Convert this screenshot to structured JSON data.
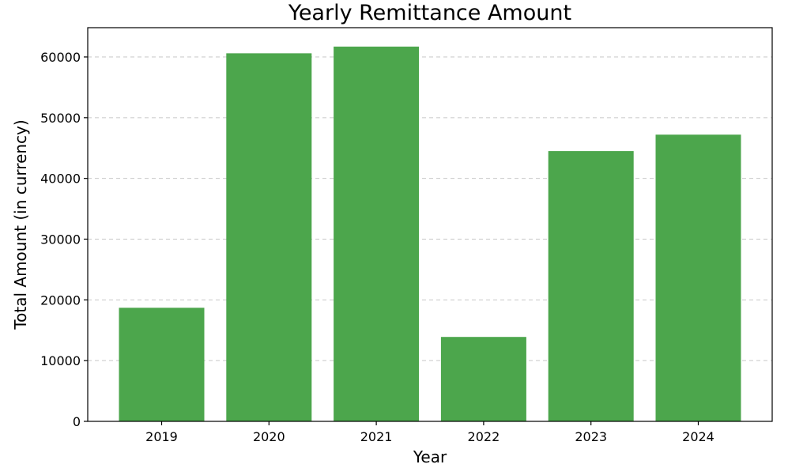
{
  "chart_data": {
    "type": "bar",
    "title": "Yearly Remittance Amount",
    "xlabel": "Year",
    "ylabel": "Total Amount (in currency)",
    "categories": [
      "2019",
      "2020",
      "2021",
      "2022",
      "2023",
      "2024"
    ],
    "values": [
      18700,
      60600,
      61700,
      13900,
      44500,
      47200
    ],
    "ylim": [
      0,
      65000
    ],
    "yticks": [
      0,
      10000,
      20000,
      30000,
      40000,
      50000,
      60000
    ],
    "grid": "y-dashed",
    "bar_color": "#4ca64c"
  }
}
